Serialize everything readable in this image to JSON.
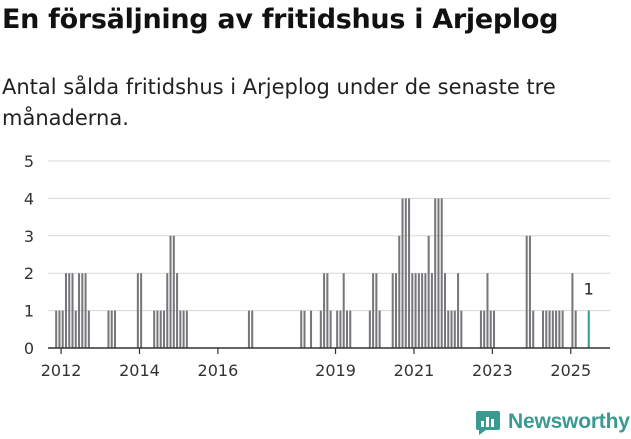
{
  "title": "En försäljning av fritidshus i Arjeplog",
  "subtitle": "Antal sålda fritidshus i Arjeplog under de senaste tre månaderna.",
  "brand": {
    "name": "Newsworthy",
    "icon": "chart-bubble-icon",
    "color": "#3a9a91"
  },
  "colors": {
    "bar": "#77777b",
    "highlight": "#2a9d8f",
    "grid": "#d7d7d7",
    "axis": "#333333"
  },
  "chart_data": {
    "type": "bar",
    "title": "En försäljning av fritidshus i Arjeplog",
    "xlabel": "",
    "ylabel": "",
    "ylim": [
      0,
      5
    ],
    "yticks": [
      0,
      1,
      2,
      3,
      4,
      5
    ],
    "xticks": [
      "2012",
      "2014",
      "2016",
      "2019",
      "2021",
      "2023",
      "2025"
    ],
    "xlim": [
      "2011-09",
      "2025-12"
    ],
    "grid": true,
    "annotation": {
      "x": "2025-06",
      "text": "1"
    },
    "points": [
      {
        "x": "2011-11",
        "y": 1
      },
      {
        "x": "2011-12",
        "y": 1
      },
      {
        "x": "2012-01",
        "y": 1
      },
      {
        "x": "2012-02",
        "y": 2
      },
      {
        "x": "2012-03",
        "y": 2
      },
      {
        "x": "2012-04",
        "y": 2
      },
      {
        "x": "2012-05",
        "y": 1
      },
      {
        "x": "2012-06",
        "y": 2
      },
      {
        "x": "2012-07",
        "y": 2
      },
      {
        "x": "2012-08",
        "y": 2
      },
      {
        "x": "2012-09",
        "y": 1
      },
      {
        "x": "2013-03",
        "y": 1
      },
      {
        "x": "2013-04",
        "y": 1
      },
      {
        "x": "2013-05",
        "y": 1
      },
      {
        "x": "2013-12",
        "y": 2
      },
      {
        "x": "2014-01",
        "y": 2
      },
      {
        "x": "2014-05",
        "y": 1
      },
      {
        "x": "2014-06",
        "y": 1
      },
      {
        "x": "2014-07",
        "y": 1
      },
      {
        "x": "2014-08",
        "y": 1
      },
      {
        "x": "2014-09",
        "y": 2
      },
      {
        "x": "2014-10",
        "y": 3
      },
      {
        "x": "2014-11",
        "y": 3
      },
      {
        "x": "2014-12",
        "y": 2
      },
      {
        "x": "2015-01",
        "y": 1
      },
      {
        "x": "2015-02",
        "y": 1
      },
      {
        "x": "2015-03",
        "y": 1
      },
      {
        "x": "2016-10",
        "y": 1
      },
      {
        "x": "2016-11",
        "y": 1
      },
      {
        "x": "2018-02",
        "y": 1
      },
      {
        "x": "2018-03",
        "y": 1
      },
      {
        "x": "2018-05",
        "y": 1
      },
      {
        "x": "2018-08",
        "y": 1
      },
      {
        "x": "2018-09",
        "y": 2
      },
      {
        "x": "2018-10",
        "y": 2
      },
      {
        "x": "2018-11",
        "y": 1
      },
      {
        "x": "2019-01",
        "y": 1
      },
      {
        "x": "2019-02",
        "y": 1
      },
      {
        "x": "2019-03",
        "y": 2
      },
      {
        "x": "2019-04",
        "y": 1
      },
      {
        "x": "2019-05",
        "y": 1
      },
      {
        "x": "2019-11",
        "y": 1
      },
      {
        "x": "2019-12",
        "y": 2
      },
      {
        "x": "2020-01",
        "y": 2
      },
      {
        "x": "2020-02",
        "y": 1
      },
      {
        "x": "2020-06",
        "y": 2
      },
      {
        "x": "2020-07",
        "y": 2
      },
      {
        "x": "2020-08",
        "y": 3
      },
      {
        "x": "2020-09",
        "y": 4
      },
      {
        "x": "2020-10",
        "y": 4
      },
      {
        "x": "2020-11",
        "y": 4
      },
      {
        "x": "2020-12",
        "y": 2
      },
      {
        "x": "2021-01",
        "y": 2
      },
      {
        "x": "2021-02",
        "y": 2
      },
      {
        "x": "2021-03",
        "y": 2
      },
      {
        "x": "2021-04",
        "y": 2
      },
      {
        "x": "2021-05",
        "y": 3
      },
      {
        "x": "2021-06",
        "y": 2
      },
      {
        "x": "2021-07",
        "y": 4
      },
      {
        "x": "2021-08",
        "y": 4
      },
      {
        "x": "2021-09",
        "y": 4
      },
      {
        "x": "2021-10",
        "y": 2
      },
      {
        "x": "2021-11",
        "y": 1
      },
      {
        "x": "2021-12",
        "y": 1
      },
      {
        "x": "2022-01",
        "y": 1
      },
      {
        "x": "2022-02",
        "y": 2
      },
      {
        "x": "2022-03",
        "y": 1
      },
      {
        "x": "2022-09",
        "y": 1
      },
      {
        "x": "2022-10",
        "y": 1
      },
      {
        "x": "2022-11",
        "y": 2
      },
      {
        "x": "2022-12",
        "y": 1
      },
      {
        "x": "2023-01",
        "y": 1
      },
      {
        "x": "2023-11",
        "y": 3
      },
      {
        "x": "2023-12",
        "y": 3
      },
      {
        "x": "2024-01",
        "y": 1
      },
      {
        "x": "2024-04",
        "y": 1
      },
      {
        "x": "2024-05",
        "y": 1
      },
      {
        "x": "2024-06",
        "y": 1
      },
      {
        "x": "2024-07",
        "y": 1
      },
      {
        "x": "2024-08",
        "y": 1
      },
      {
        "x": "2024-09",
        "y": 1
      },
      {
        "x": "2024-10",
        "y": 1
      },
      {
        "x": "2025-01",
        "y": 2
      },
      {
        "x": "2025-02",
        "y": 1
      },
      {
        "x": "2025-06",
        "y": 1,
        "highlight": true
      }
    ]
  }
}
